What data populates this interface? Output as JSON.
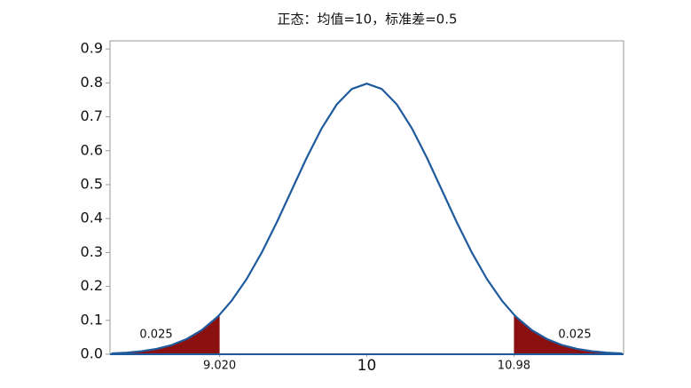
{
  "chart_data": {
    "type": "line",
    "title": "正态：均值=10，标准差=0.5",
    "x": [
      8.3,
      8.4,
      8.5,
      8.6,
      8.7,
      8.8,
      8.9,
      9.0,
      9.02,
      9.1,
      9.2,
      9.3,
      9.4,
      9.5,
      9.6,
      9.7,
      9.8,
      9.9,
      10.0,
      10.1,
      10.2,
      10.3,
      10.4,
      10.5,
      10.6,
      10.7,
      10.8,
      10.9,
      10.98,
      11.0,
      11.1,
      11.2,
      11.3,
      11.4,
      11.5,
      11.6,
      11.7
    ],
    "values": [
      0.0025,
      0.0048,
      0.0089,
      0.0158,
      0.0271,
      0.0448,
      0.0709,
      0.108,
      0.1169,
      0.1579,
      0.2218,
      0.2995,
      0.3884,
      0.4839,
      0.5794,
      0.6664,
      0.7365,
      0.7821,
      0.7979,
      0.7821,
      0.7365,
      0.6664,
      0.5794,
      0.4839,
      0.3884,
      0.2995,
      0.2218,
      0.1579,
      0.1169,
      0.108,
      0.0709,
      0.0448,
      0.0271,
      0.0158,
      0.0089,
      0.0048,
      0.0025
    ],
    "color": "#1f5a9c",
    "tails": [
      {
        "area": 0.025,
        "xlim": [
          8.29,
          9.02
        ],
        "color": "#8b1010"
      },
      {
        "area": 0.025,
        "xlim": [
          10.98,
          11.71
        ],
        "color": "#8b1010"
      }
    ],
    "xlim": [
      8.29,
      11.71
    ],
    "xticks": [
      {
        "value": 9.02,
        "label": "9.020"
      },
      10,
      10.98
    ],
    "ylim": [
      0,
      0.924
    ],
    "yticks": [
      {
        "value": 0,
        "label": "0.0"
      },
      0.1,
      0.2,
      0.3,
      0.4,
      0.5,
      0.6,
      0.7,
      0.8,
      0.9
    ]
  }
}
